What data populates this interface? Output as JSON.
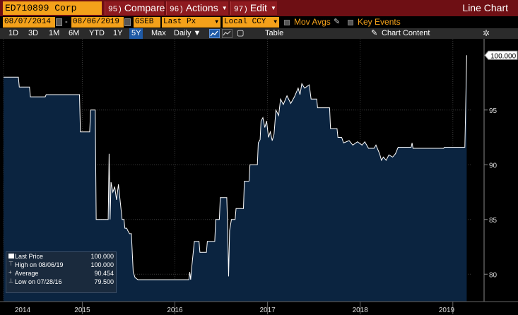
{
  "toolbar": {
    "ticker": "ED710899 Corp",
    "compare": {
      "num": "95)",
      "label": "Compare"
    },
    "actions": {
      "num": "96)",
      "label": "Actions"
    },
    "edit": {
      "num": "97)",
      "label": "Edit"
    },
    "window_title": "Line Chart"
  },
  "params": {
    "start_date": "08/07/2014",
    "end_date": "08/06/2019",
    "pricing_source": "GSEB",
    "field": "Last Px",
    "currency": "Local CCY",
    "mov_avgs": "Mov Avgs",
    "key_events": "Key Events"
  },
  "periods": [
    "1D",
    "3D",
    "1M",
    "6M",
    "YTD",
    "1Y",
    "5Y",
    "Max"
  ],
  "selected_period": "5Y",
  "frequency": "Daily",
  "table_label": "Table",
  "chart_content_label": "Chart Content",
  "legend": {
    "last_price_label": "Last Price",
    "last_price": "100.000",
    "high_label": "High on 08/06/19",
    "high": "100.000",
    "average_label": "Average",
    "average": "90.454",
    "low_label": "Low on 07/28/16",
    "low": "79.500"
  },
  "colors": {
    "area": "#0b2440",
    "line": "#ffffff",
    "accent": "#f4a11a",
    "header": "#6e0f14"
  },
  "chart_data": {
    "type": "area",
    "ylim": [
      77.5,
      101.5
    ],
    "yticks": [
      80,
      85,
      90,
      95
    ],
    "last_value_label": "100.000",
    "xticks": [
      {
        "label": "2014",
        "x": 2014.6
      },
      {
        "label": "2015",
        "x": 2015.45
      },
      {
        "label": "2016",
        "x": 2016.45
      },
      {
        "label": "2017",
        "x": 2017.45
      },
      {
        "label": "2018",
        "x": 2018.45
      },
      {
        "label": "2019",
        "x": 2019.45
      }
    ],
    "xlim": [
      2014.6,
      2019.65
    ],
    "series": [
      {
        "values": [
          [
            2014.6,
            98.0
          ],
          [
            2014.76,
            98.0
          ],
          [
            2014.77,
            97.1
          ],
          [
            2014.88,
            97.1
          ],
          [
            2014.89,
            96.2
          ],
          [
            2015.05,
            96.2
          ],
          [
            2015.06,
            96.4
          ],
          [
            2015.42,
            96.4
          ],
          [
            2015.43,
            93.0
          ],
          [
            2015.53,
            93.0
          ],
          [
            2015.54,
            95.0
          ],
          [
            2015.59,
            95.0
          ],
          [
            2015.6,
            85.0
          ],
          [
            2015.73,
            85.0
          ],
          [
            2015.74,
            91.0
          ],
          [
            2015.75,
            85.0
          ],
          [
            2015.76,
            88.4
          ],
          [
            2015.78,
            87.5
          ],
          [
            2015.8,
            88.0
          ],
          [
            2015.82,
            86.8
          ],
          [
            2015.84,
            88.2
          ],
          [
            2015.86,
            86.6
          ],
          [
            2015.88,
            85.0
          ],
          [
            2015.9,
            85.0
          ],
          [
            2015.91,
            84.2
          ],
          [
            2015.93,
            84.2
          ],
          [
            2015.94,
            84.0
          ],
          [
            2015.96,
            83.7
          ],
          [
            2015.98,
            83.7
          ],
          [
            2016.0,
            80.2
          ],
          [
            2016.02,
            79.7
          ],
          [
            2016.05,
            79.5
          ],
          [
            2016.6,
            79.5
          ],
          [
            2016.61,
            80.2
          ],
          [
            2016.62,
            79.5
          ],
          [
            2016.63,
            80.5
          ],
          [
            2016.66,
            83.0
          ],
          [
            2016.71,
            83.0
          ],
          [
            2016.72,
            82.0
          ],
          [
            2016.79,
            82.0
          ],
          [
            2016.8,
            83.0
          ],
          [
            2016.88,
            83.0
          ],
          [
            2016.89,
            85.0
          ],
          [
            2016.93,
            85.0
          ],
          [
            2016.94,
            87.0
          ],
          [
            2017.01,
            87.0
          ],
          [
            2017.02,
            84.0
          ],
          [
            2017.03,
            79.8
          ],
          [
            2017.04,
            84.0
          ],
          [
            2017.06,
            85.0
          ],
          [
            2017.1,
            85.0
          ],
          [
            2017.11,
            86.0
          ],
          [
            2017.19,
            86.0
          ],
          [
            2017.2,
            88.5
          ],
          [
            2017.25,
            88.5
          ],
          [
            2017.26,
            90.0
          ],
          [
            2017.34,
            90.0
          ],
          [
            2017.35,
            92.0
          ],
          [
            2017.37,
            92.3
          ],
          [
            2017.38,
            94.0
          ],
          [
            2017.4,
            94.3
          ],
          [
            2017.42,
            93.4
          ],
          [
            2017.44,
            94.0
          ],
          [
            2017.46,
            92.5
          ],
          [
            2017.48,
            93.0
          ],
          [
            2017.5,
            92.2
          ],
          [
            2017.52,
            92.8
          ],
          [
            2017.54,
            95.0
          ],
          [
            2017.57,
            94.5
          ],
          [
            2017.59,
            96.0
          ],
          [
            2017.62,
            95.5
          ],
          [
            2017.66,
            96.3
          ],
          [
            2017.7,
            95.6
          ],
          [
            2017.74,
            96.2
          ],
          [
            2017.78,
            97.0
          ],
          [
            2017.8,
            96.4
          ],
          [
            2017.82,
            97.4
          ],
          [
            2017.85,
            97.0
          ],
          [
            2017.9,
            97.3
          ],
          [
            2017.92,
            96.0
          ],
          [
            2017.98,
            96.0
          ],
          [
            2017.99,
            95.2
          ],
          [
            2018.12,
            95.2
          ],
          [
            2018.13,
            93.3
          ],
          [
            2018.2,
            93.3
          ],
          [
            2018.21,
            92.5
          ],
          [
            2018.25,
            92.5
          ],
          [
            2018.27,
            92.0
          ],
          [
            2018.33,
            92.2
          ],
          [
            2018.37,
            91.8
          ],
          [
            2018.42,
            92.1
          ],
          [
            2018.47,
            91.8
          ],
          [
            2018.5,
            92.1
          ],
          [
            2018.54,
            91.5
          ],
          [
            2018.6,
            91.5
          ],
          [
            2018.62,
            91.8
          ],
          [
            2018.66,
            91.0
          ],
          [
            2018.68,
            90.4
          ],
          [
            2018.7,
            90.7
          ],
          [
            2018.73,
            90.4
          ],
          [
            2018.76,
            90.9
          ],
          [
            2018.8,
            90.7
          ],
          [
            2018.83,
            91.0
          ],
          [
            2018.86,
            91.6
          ],
          [
            2019.0,
            91.6
          ],
          [
            2019.01,
            92.0
          ],
          [
            2019.02,
            91.5
          ],
          [
            2019.35,
            91.5
          ],
          [
            2019.36,
            91.6
          ],
          [
            2019.58,
            91.6
          ],
          [
            2019.6,
            100.0
          ]
        ]
      }
    ]
  }
}
